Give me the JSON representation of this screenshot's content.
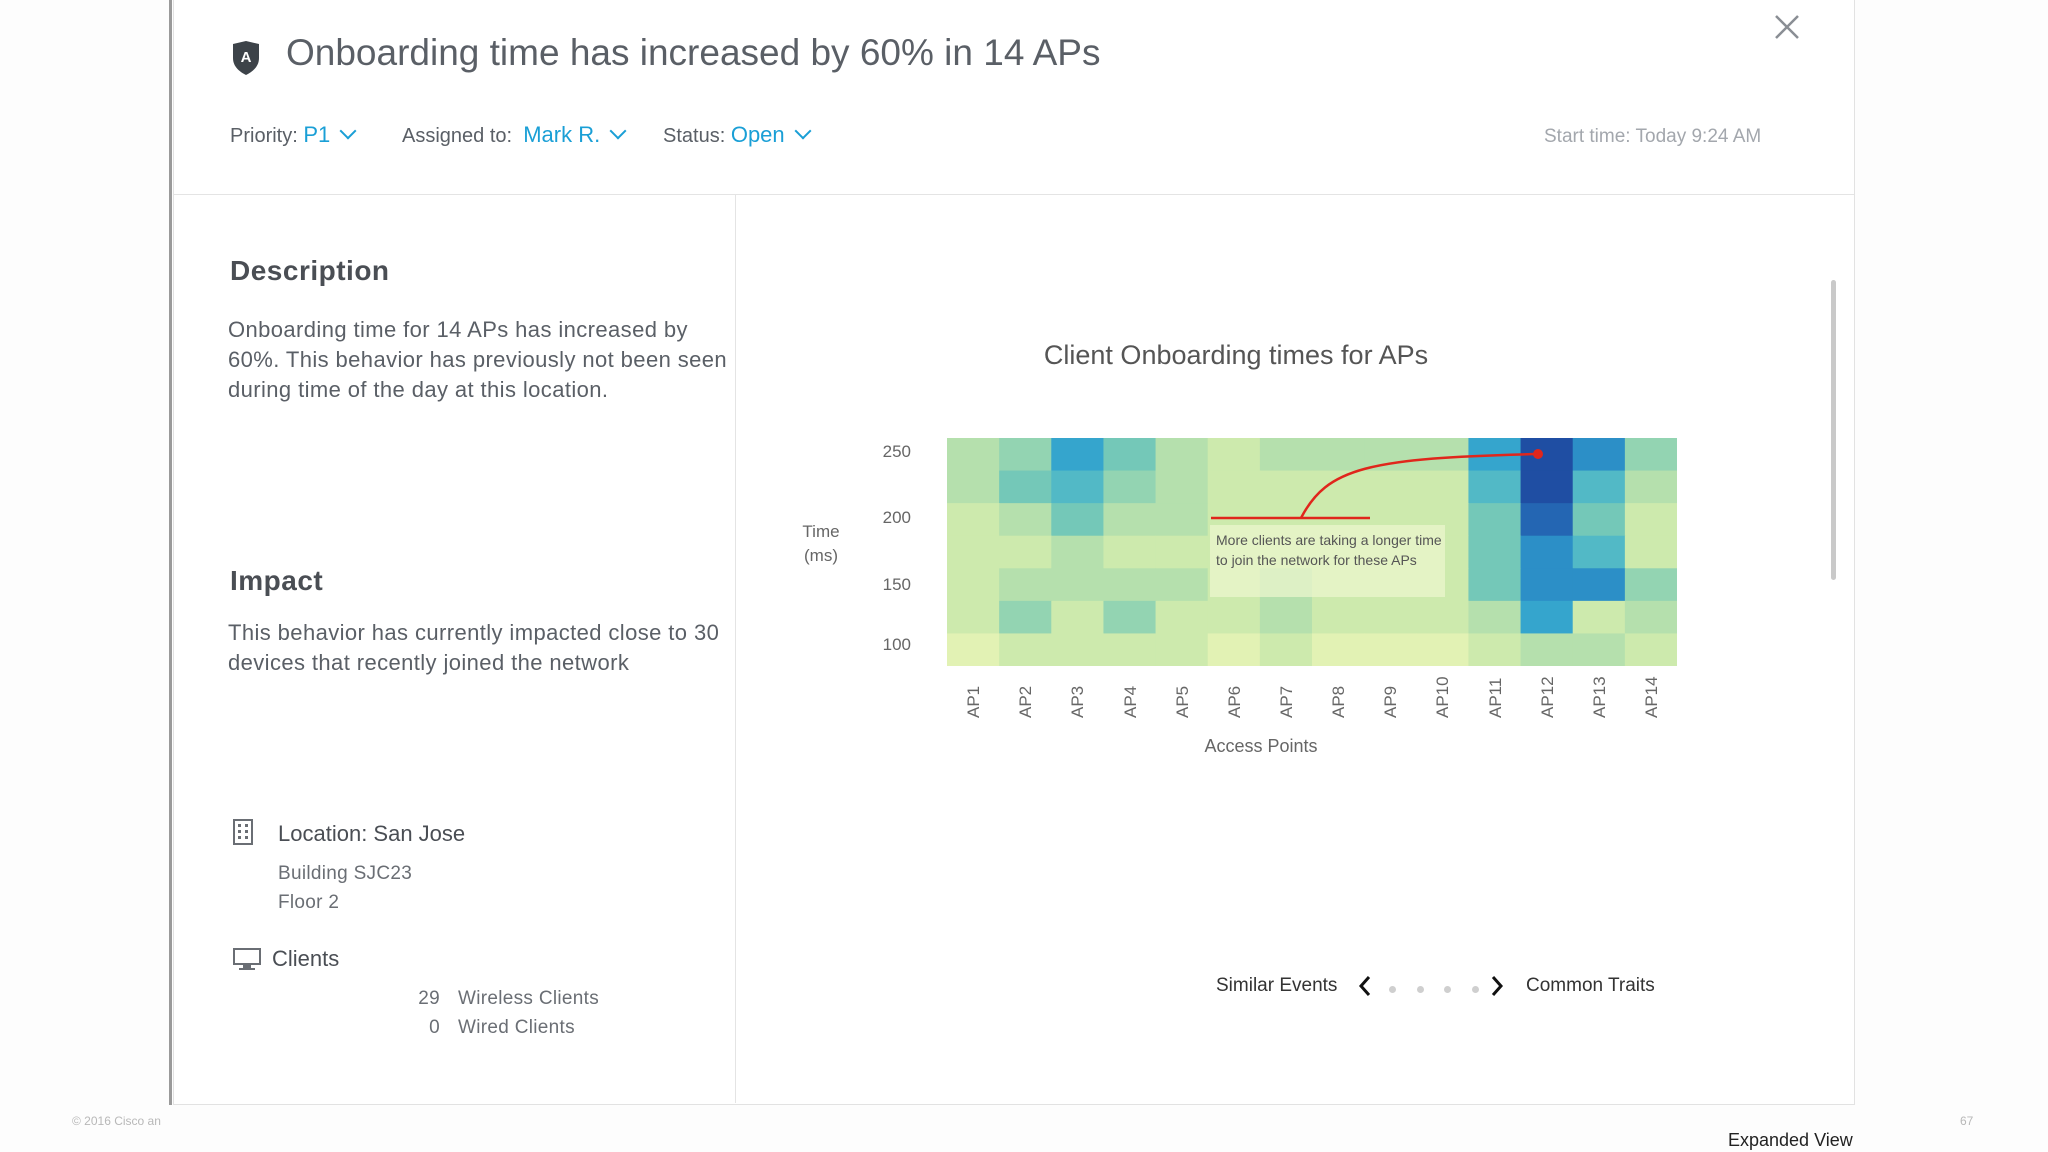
{
  "page": {
    "copyright": "© 2016 Cisco an",
    "page_number": "67",
    "view_label": "Expanded View"
  },
  "header": {
    "title": "Onboarding time has increased by 60% in 14 APs",
    "icon": "shield-a-icon",
    "priority_label": "Priority:",
    "priority_value": "P1",
    "assigned_label": "Assigned to:",
    "assigned_value": "Mark R.",
    "status_label": "Status:",
    "status_value": "Open",
    "start_time": "Start time: Today 9:24 AM",
    "accent_color": "#1a9fd6"
  },
  "description": {
    "heading": "Description",
    "text": "Onboarding time for 14 APs has increased by 60%. This behavior has previously not been seen during time of the day at this location."
  },
  "impact": {
    "heading": "Impact",
    "text": "This behavior has currently impacted close to 30 devices that recently joined the network"
  },
  "location": {
    "label": "Location",
    "value": "San Jose",
    "building": "Building SJC23",
    "floor": "Floor 2",
    "icon": "building-icon"
  },
  "clients": {
    "label": "Clients",
    "icon": "monitor-icon",
    "rows": [
      {
        "count": "29",
        "label": "Wireless Clients"
      },
      {
        "count": "0",
        "label": "Wired Clients"
      }
    ]
  },
  "navigation": {
    "prev_label": "Similar Events",
    "next_label": "Common Traits",
    "dots": 4
  },
  "chart_data": {
    "type": "heatmap",
    "title": "Client Onboarding times for APs",
    "xlabel": "Access Points",
    "ylabel": "Time (ms)",
    "x": [
      "AP1",
      "AP2",
      "AP3",
      "AP4",
      "AP5",
      "AP6",
      "AP7",
      "AP8",
      "AP9",
      "AP10",
      "AP11",
      "AP12",
      "AP13",
      "AP14"
    ],
    "y_ticks": [
      "250",
      "200",
      "150",
      "100"
    ],
    "rows_top_to_bottom": [
      [
        3,
        4,
        7,
        5,
        3,
        2,
        3,
        3,
        3,
        3,
        7,
        10,
        8,
        4
      ],
      [
        3,
        5,
        6,
        4,
        3,
        2,
        2,
        2,
        2,
        2,
        6,
        10,
        6,
        3
      ],
      [
        2,
        3,
        5,
        3,
        3,
        2,
        2,
        2,
        2,
        2,
        5,
        9,
        5,
        2
      ],
      [
        2,
        2,
        3,
        2,
        2,
        2,
        2,
        2,
        2,
        2,
        5,
        8,
        6,
        2
      ],
      [
        2,
        3,
        3,
        3,
        3,
        2,
        3,
        2,
        2,
        2,
        5,
        8,
        8,
        4
      ],
      [
        2,
        4,
        2,
        4,
        2,
        2,
        3,
        2,
        2,
        2,
        3,
        7,
        2,
        3
      ],
      [
        1,
        2,
        2,
        2,
        2,
        1,
        2,
        1,
        1,
        1,
        2,
        3,
        3,
        2
      ]
    ],
    "annotation": "More clients are taking a longer time to join the network for these APs"
  }
}
